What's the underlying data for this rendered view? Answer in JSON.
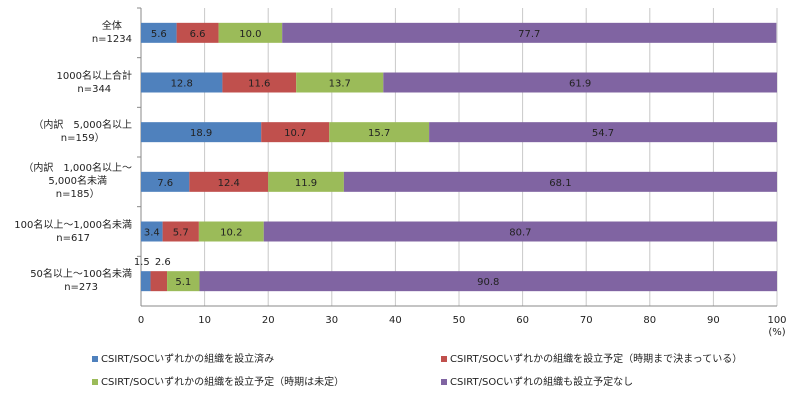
{
  "chart_data": {
    "type": "bar",
    "stacked": true,
    "orientation": "horizontal",
    "categories": [
      [
        "全体",
        "n=1234"
      ],
      [
        "1000名以上合計",
        "n=344"
      ],
      [
        "（内訳　5,000名以上",
        "n=159）"
      ],
      [
        "（内訳　1,000名以上～",
        "5,000名未満",
        "n=185）"
      ],
      [
        "100名以上～1,000名未満",
        "n=617"
      ],
      [
        "50名以上～100名未満",
        "n=273"
      ]
    ],
    "series": [
      {
        "name": "CSIRT/SOCいずれかの組織を設立済み",
        "color": "#4f81bd",
        "values": [
          5.6,
          12.8,
          18.9,
          7.6,
          3.4,
          1.5
        ]
      },
      {
        "name": "CSIRT/SOCいずれかの組織を設立予定（時期まで決まっている）",
        "color": "#c0504d",
        "values": [
          6.6,
          11.6,
          10.7,
          12.4,
          5.7,
          2.6
        ]
      },
      {
        "name": "CSIRT/SOCいずれかの組織を設立予定（時期は未定）",
        "color": "#9bbb59",
        "values": [
          10.0,
          13.7,
          15.7,
          11.9,
          10.2,
          5.1
        ]
      },
      {
        "name": "CSIRT/SOCいずれの組織も設立予定なし",
        "color": "#8064a2",
        "values": [
          77.7,
          61.9,
          54.7,
          68.1,
          80.7,
          90.8
        ]
      }
    ],
    "xlim": [
      0,
      100
    ],
    "xticks": [
      "0",
      "10",
      "20",
      "30",
      "40",
      "50",
      "60",
      "70",
      "80",
      "90",
      "100"
    ],
    "xunit": "(%)",
    "grid": true,
    "legend": "bottom"
  }
}
